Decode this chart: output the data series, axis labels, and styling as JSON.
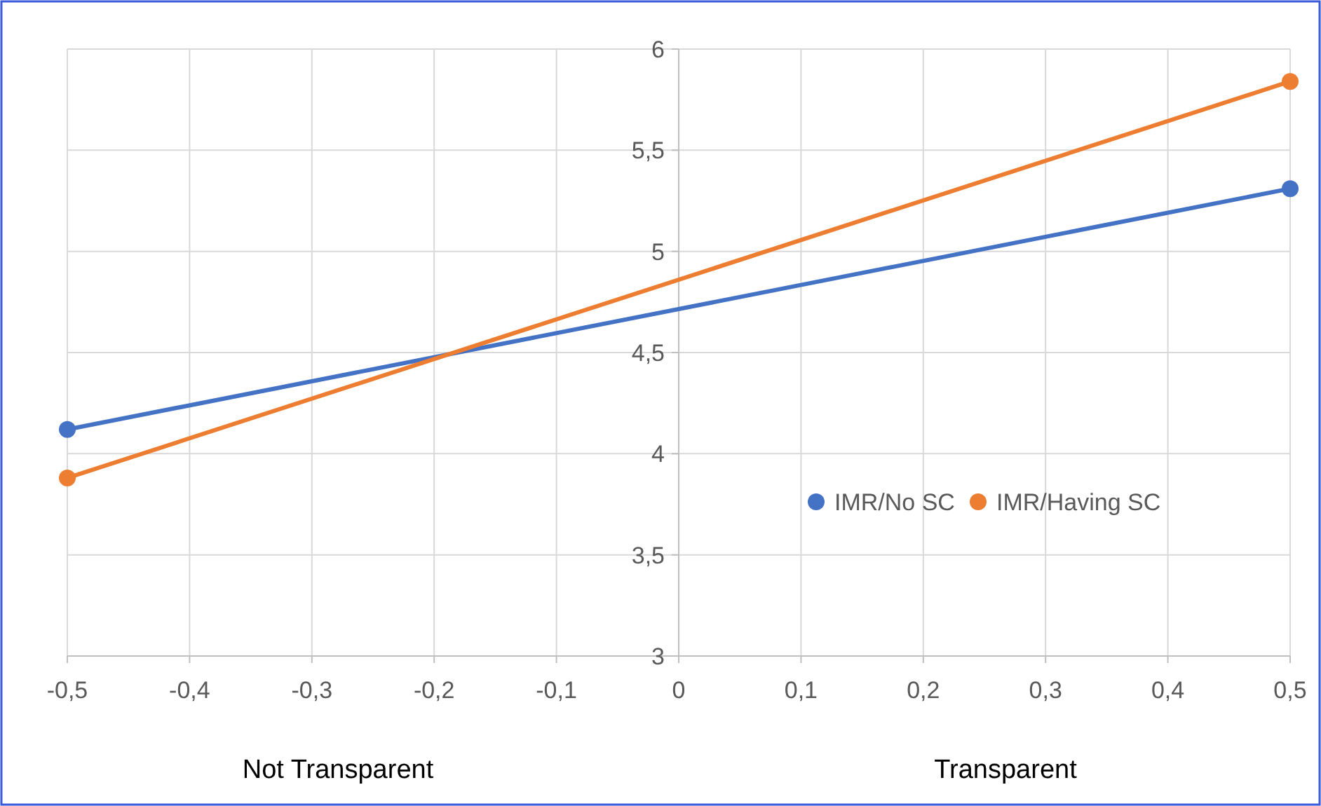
{
  "chart_data": {
    "type": "line",
    "x": [
      -0.5,
      0.5
    ],
    "series": [
      {
        "name": "IMR/No SC",
        "color": "#4472c4",
        "values": [
          4.12,
          5.31
        ]
      },
      {
        "name": "IMR/Having SC",
        "color": "#ed7d31",
        "values": [
          3.88,
          5.84
        ]
      }
    ],
    "xlim": [
      -0.5,
      0.5
    ],
    "ylim": [
      3,
      6
    ],
    "xticks": [
      {
        "value": -0.5,
        "label": "-0,5"
      },
      {
        "value": -0.4,
        "label": "-0,4"
      },
      {
        "value": -0.3,
        "label": "-0,3"
      },
      {
        "value": -0.2,
        "label": "-0,2"
      },
      {
        "value": -0.1,
        "label": "-0,1"
      },
      0,
      {
        "value": 0.1,
        "label": "0,1"
      },
      {
        "value": 0.2,
        "label": "0,2"
      },
      {
        "value": 0.3,
        "label": "0,3"
      },
      {
        "value": 0.4,
        "label": "0,4"
      },
      {
        "value": 0.5,
        "label": "0,5"
      }
    ],
    "yticks": [
      3,
      {
        "value": 3.5,
        "label": "3,5"
      },
      4,
      {
        "value": 4.5,
        "label": "4,5"
      },
      5,
      {
        "value": 5.5,
        "label": "5,5"
      },
      6
    ],
    "annotations": [
      "Not Transparent",
      "Transparent"
    ],
    "grid": true,
    "legend": "right",
    "marker": "circle",
    "line_style": "solid"
  }
}
